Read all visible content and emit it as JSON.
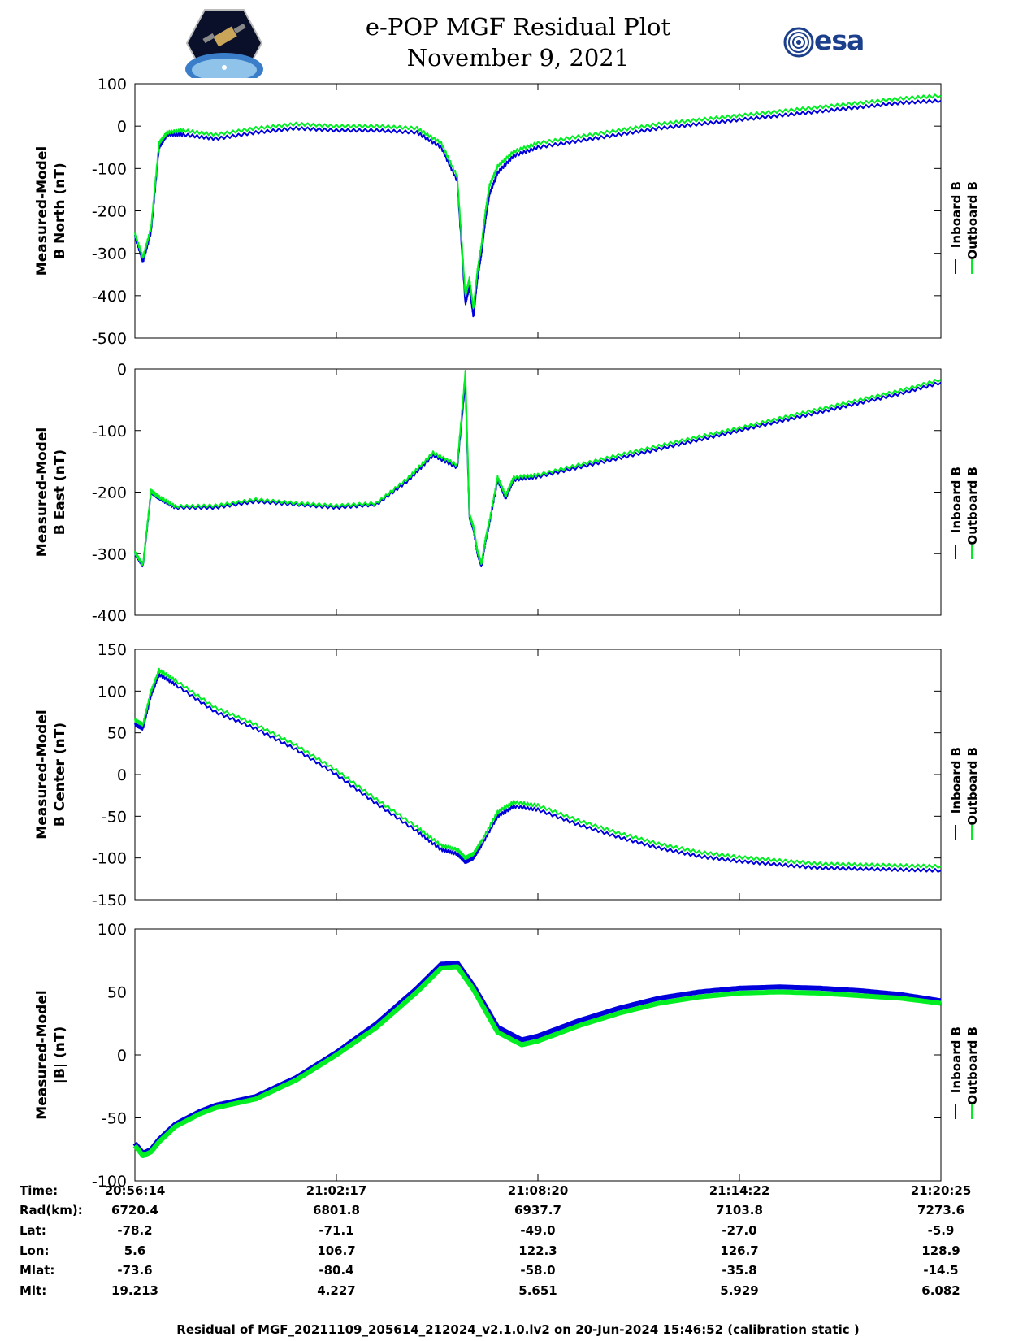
{
  "header": {
    "title": "e-POP MGF Residual Plot",
    "date": "November 9, 2021",
    "left_logo": "cassiope-mission-badge",
    "right_logo": "esa-logo",
    "right_logo_text": "esa"
  },
  "colors": {
    "inboard": "#0000dd",
    "outboard": "#00ee22"
  },
  "chart_data": [
    {
      "type": "line",
      "ylabel": [
        "Measured-Model",
        "B North (nT)"
      ],
      "ylim": [
        -500,
        100
      ],
      "yticks": [
        100,
        0,
        -100,
        -200,
        -300,
        -400,
        -500
      ],
      "legend": [
        "Inboard B",
        "Outboard B"
      ],
      "x": [
        0,
        0.01,
        0.02,
        0.03,
        0.04,
        0.06,
        0.1,
        0.15,
        0.2,
        0.25,
        0.3,
        0.35,
        0.38,
        0.4,
        0.41,
        0.415,
        0.42,
        0.425,
        0.43,
        0.435,
        0.44,
        0.45,
        0.47,
        0.5,
        0.55,
        0.6,
        0.65,
        0.7,
        0.75,
        0.8,
        0.85,
        0.9,
        0.95,
        1.0
      ],
      "series": [
        {
          "name": "Inboard B",
          "values": [
            -260,
            -320,
            -250,
            -50,
            -20,
            -20,
            -30,
            -15,
            -5,
            -10,
            -10,
            -15,
            -50,
            -130,
            -420,
            -380,
            -450,
            -360,
            -300,
            -220,
            -160,
            -110,
            -70,
            -50,
            -35,
            -20,
            -5,
            5,
            15,
            25,
            35,
            45,
            55,
            60
          ]
        },
        {
          "name": "Outboard B",
          "values": [
            -255,
            -310,
            -240,
            -40,
            -15,
            -10,
            -20,
            -5,
            5,
            0,
            0,
            -5,
            -40,
            -120,
            -400,
            -360,
            -430,
            -340,
            -280,
            -200,
            -140,
            -95,
            -60,
            -40,
            -25,
            -10,
            5,
            15,
            25,
            35,
            45,
            55,
            65,
            72
          ]
        }
      ]
    },
    {
      "type": "line",
      "ylabel": [
        "Measured-Model",
        "B East (nT)"
      ],
      "ylim": [
        -400,
        0
      ],
      "yticks": [
        0,
        -100,
        -200,
        -300,
        -400
      ],
      "legend": [
        "Inboard B",
        "Outboard B"
      ],
      "x": [
        0,
        0.01,
        0.02,
        0.03,
        0.05,
        0.1,
        0.15,
        0.2,
        0.25,
        0.3,
        0.34,
        0.37,
        0.4,
        0.41,
        0.415,
        0.42,
        0.425,
        0.43,
        0.435,
        0.44,
        0.45,
        0.46,
        0.47,
        0.5,
        0.55,
        0.6,
        0.65,
        0.7,
        0.75,
        0.8,
        0.85,
        0.9,
        0.95,
        1.0
      ],
      "series": [
        {
          "name": "Inboard B",
          "values": [
            -300,
            -320,
            -200,
            -210,
            -225,
            -225,
            -215,
            -220,
            -225,
            -220,
            -180,
            -140,
            -160,
            -20,
            -240,
            -260,
            -300,
            -320,
            -280,
            -250,
            -180,
            -210,
            -180,
            -175,
            -160,
            -145,
            -130,
            -115,
            -100,
            -85,
            -70,
            -55,
            -40,
            -22
          ]
        },
        {
          "name": "Outboard B",
          "values": [
            -298,
            -318,
            -198,
            -208,
            -223,
            -222,
            -212,
            -218,
            -222,
            -218,
            -176,
            -136,
            -156,
            -5,
            -236,
            -256,
            -296,
            -316,
            -276,
            -246,
            -176,
            -206,
            -176,
            -172,
            -156,
            -140,
            -125,
            -110,
            -96,
            -80,
            -65,
            -50,
            -35,
            -17
          ]
        }
      ]
    },
    {
      "type": "line",
      "ylabel": [
        "Measured-Model",
        "B Center (nT)"
      ],
      "ylim": [
        -150,
        150
      ],
      "yticks": [
        150,
        100,
        50,
        0,
        -50,
        -100,
        -150
      ],
      "legend": [
        "Inboard B",
        "Outboard B"
      ],
      "x": [
        0,
        0.01,
        0.02,
        0.03,
        0.05,
        0.1,
        0.15,
        0.2,
        0.25,
        0.3,
        0.35,
        0.38,
        0.4,
        0.41,
        0.42,
        0.43,
        0.45,
        0.47,
        0.5,
        0.55,
        0.6,
        0.65,
        0.7,
        0.75,
        0.8,
        0.85,
        0.9,
        0.95,
        1.0
      ],
      "series": [
        {
          "name": "Inboard B",
          "values": [
            60,
            55,
            95,
            120,
            108,
            75,
            55,
            30,
            0,
            -35,
            -68,
            -90,
            -95,
            -105,
            -100,
            -85,
            -50,
            -38,
            -42,
            -60,
            -75,
            -88,
            -98,
            -104,
            -108,
            -112,
            -113,
            -114,
            -115
          ]
        },
        {
          "name": "Outboard B",
          "values": [
            65,
            60,
            100,
            125,
            113,
            80,
            60,
            35,
            5,
            -30,
            -63,
            -85,
            -90,
            -100,
            -95,
            -80,
            -45,
            -33,
            -37,
            -55,
            -70,
            -83,
            -93,
            -99,
            -103,
            -107,
            -108,
            -109,
            -110
          ]
        }
      ]
    },
    {
      "type": "line",
      "ylabel": [
        "Measured-Model",
        "|B| (nT)"
      ],
      "ylim": [
        -100,
        100
      ],
      "yticks": [
        100,
        50,
        0,
        -50,
        -100
      ],
      "legend": [
        "Inboard B",
        "Outboard B"
      ],
      "x": [
        0,
        0.01,
        0.02,
        0.03,
        0.05,
        0.08,
        0.1,
        0.15,
        0.2,
        0.25,
        0.3,
        0.35,
        0.38,
        0.4,
        0.42,
        0.45,
        0.48,
        0.5,
        0.55,
        0.6,
        0.65,
        0.7,
        0.75,
        0.8,
        0.85,
        0.9,
        0.95,
        1.0
      ],
      "series": [
        {
          "name": "Inboard B",
          "values": [
            -70,
            -78,
            -75,
            -67,
            -55,
            -45,
            -40,
            -33,
            -18,
            2,
            25,
            53,
            72,
            73,
            55,
            22,
            12,
            15,
            27,
            37,
            45,
            50,
            53,
            54,
            53,
            51,
            48,
            43
          ]
        },
        {
          "name": "Outboard B",
          "values": [
            -72,
            -80,
            -77,
            -69,
            -57,
            -47,
            -42,
            -35,
            -20,
            0,
            22,
            50,
            69,
            70,
            52,
            18,
            8,
            11,
            23,
            33,
            41,
            46,
            49,
            50,
            49,
            47,
            45,
            41
          ]
        }
      ]
    }
  ],
  "x_axis": {
    "ticks": [
      0,
      0.25,
      0.5,
      0.75,
      1.0
    ],
    "row_labels": [
      "Time:",
      "Rad(km):",
      "Lat:",
      "Lon:",
      "Mlat:",
      "Mlt:"
    ],
    "columns": [
      [
        "20:56:14",
        "6720.4",
        "-78.2",
        "5.6",
        "-73.6",
        "19.213"
      ],
      [
        "21:02:17",
        "6801.8",
        "-71.1",
        "106.7",
        "-80.4",
        "4.227"
      ],
      [
        "21:08:20",
        "6937.7",
        "-49.0",
        "122.3",
        "-58.0",
        "5.651"
      ],
      [
        "21:14:22",
        "7103.8",
        "-27.0",
        "126.7",
        "-35.8",
        "5.929"
      ],
      [
        "21:20:25",
        "7273.6",
        "-5.9",
        "128.9",
        "-14.5",
        "6.082"
      ]
    ]
  },
  "footer": "Residual of MGF_20211109_205614_212024_v2.1.0.lv2 on 20-Jun-2024 15:46:52 (calibration static )"
}
